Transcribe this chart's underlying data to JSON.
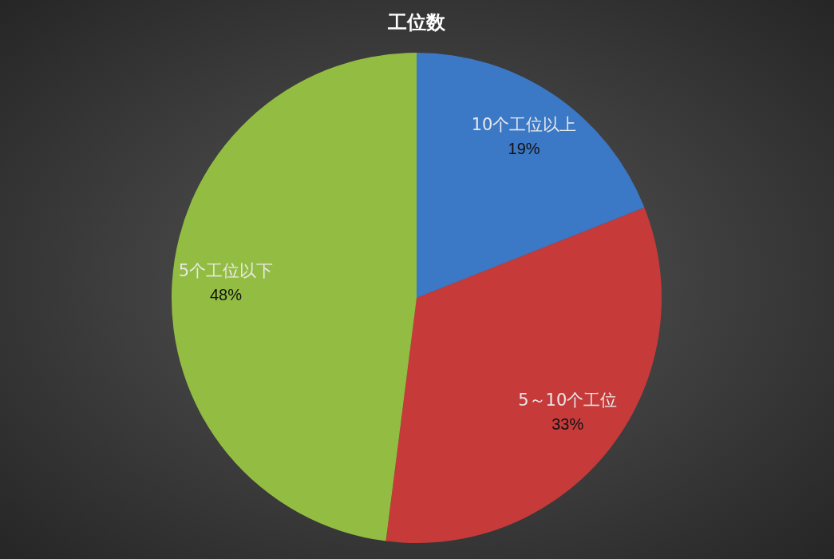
{
  "chart_data": {
    "type": "pie",
    "title": "工位数",
    "categories": [
      "10个工位以上",
      "5～10个工位",
      "5个工位以下"
    ],
    "values": [
      19,
      33,
      48
    ],
    "colors": [
      "#3b78c6",
      "#c73a3a",
      "#93bd42"
    ],
    "value_labels": [
      "19%",
      "33%",
      "48%"
    ]
  }
}
